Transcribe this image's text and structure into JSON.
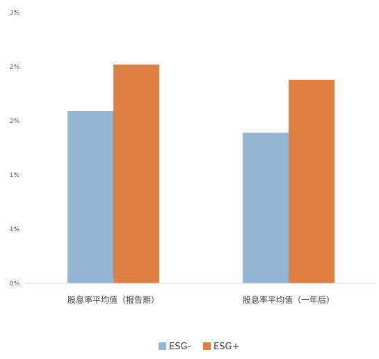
{
  "chart_data": {
    "type": "bar",
    "categories": [
      "股息率平均值（报告期）",
      "股息率平均值（一年后）"
    ],
    "series": [
      {
        "name": "ESG-",
        "color": "#95b5d5",
        "values": [
          1.59,
          1.39
        ]
      },
      {
        "name": "ESG+",
        "color": "#de8044",
        "values": [
          2.02,
          1.88
        ]
      }
    ],
    "y_tick_values": [
      0,
      0.5,
      1.0,
      1.5,
      2.0,
      2.5
    ],
    "y_tick_labels": [
      "0%",
      "1%",
      "1%",
      "2%",
      "2%",
      "3%"
    ],
    "ylim": [
      0,
      2.5
    ],
    "grid": false,
    "legend_position": "bottom",
    "title": "",
    "xlabel": "",
    "ylabel": ""
  }
}
